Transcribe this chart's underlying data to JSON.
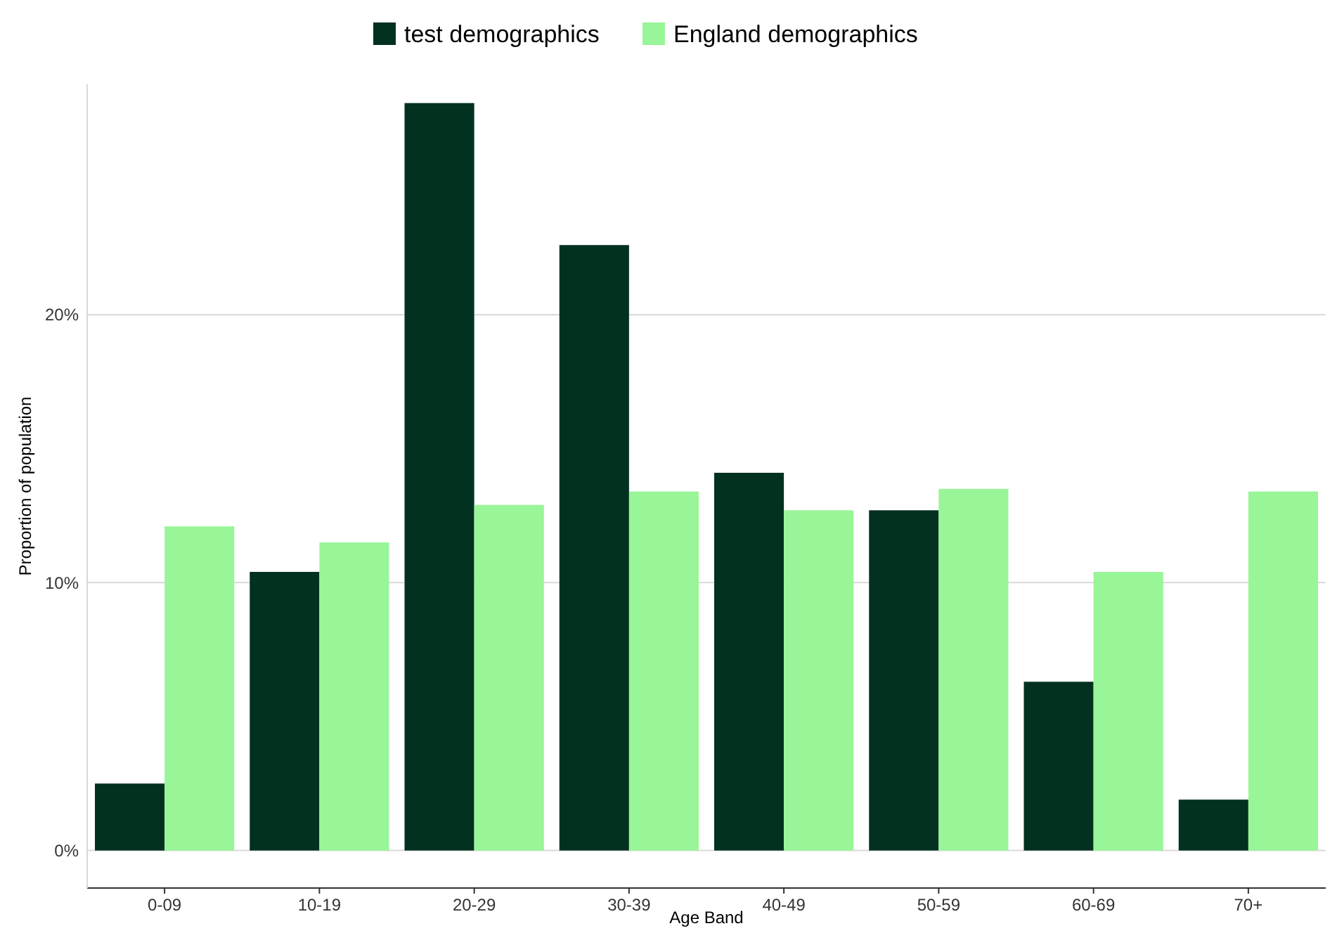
{
  "chart_data": {
    "type": "bar",
    "xlabel": "Age Band",
    "ylabel": "Proportion of population",
    "categories": [
      "0-09",
      "10-19",
      "20-29",
      "30-39",
      "40-49",
      "50-59",
      "60-69",
      "70+"
    ],
    "series": [
      {
        "name": "test demographics",
        "color": "#03311f",
        "values": [
          2.5,
          10.4,
          27.9,
          22.6,
          14.1,
          12.7,
          6.3,
          1.9
        ]
      },
      {
        "name": "England demographics",
        "color": "#98f598",
        "values": [
          12.1,
          11.5,
          12.9,
          13.4,
          12.7,
          13.5,
          10.4,
          13.4
        ]
      }
    ],
    "ylim": [
      -1.4,
      28.6
    ],
    "yticks": [
      {
        "value": 0,
        "label": "0%"
      },
      {
        "value": 10,
        "label": "10%"
      },
      {
        "value": 20,
        "label": "20%"
      }
    ],
    "grid": "y",
    "legend": "top"
  }
}
